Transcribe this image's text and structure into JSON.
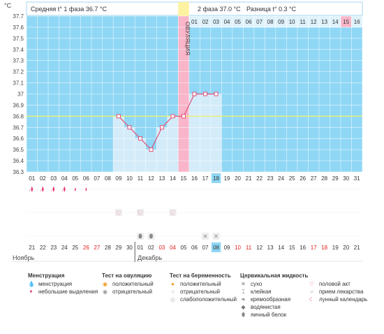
{
  "header": {
    "phase1": "Средняя t° 1 фаза 36.7 °C",
    "phase2": "2 фаза 37.0 °C",
    "diff": "Разница t° 0.3 °C"
  },
  "ovulation_label": "ОВУЛЯЦИЯ",
  "months": {
    "left": "Ноябрь",
    "right": "Декабрь"
  },
  "chart_data": {
    "type": "line",
    "title": "",
    "ylabel": "°C",
    "ylim": [
      36.3,
      37.7
    ],
    "yticks": [
      "36.3",
      "36.4",
      "36.5",
      "36.6",
      "36.7",
      "36.8",
      "36.9",
      "37",
      "37.1",
      "37.2",
      "37.3",
      "37.4",
      "37.5",
      "37.6",
      "37.7"
    ],
    "cycle_days": [
      "01",
      "02",
      "03",
      "04",
      "05",
      "06",
      "07",
      "08",
      "09",
      "10",
      "11",
      "12",
      "13",
      "14",
      "15",
      "16",
      "17",
      "18",
      "19",
      "20",
      "21",
      "22",
      "23",
      "24",
      "25",
      "26",
      "27",
      "28",
      "29",
      "30",
      "31"
    ],
    "top_days": [
      "01",
      "02",
      "03",
      "04",
      "05",
      "06",
      "07",
      "08",
      "09",
      "10",
      "11",
      "12",
      "13",
      "14",
      "15",
      "16"
    ],
    "dates": [
      "21",
      "22",
      "23",
      "24",
      "25",
      "26",
      "27",
      "28",
      "29",
      "30",
      "01",
      "02",
      "03",
      "04",
      "05",
      "06",
      "07",
      "08",
      "09",
      "10",
      "11",
      "12",
      "13",
      "14",
      "15",
      "16",
      "17",
      "18",
      "19",
      "20",
      "21"
    ],
    "weekend_date_indices": [
      5,
      6,
      12,
      13,
      19,
      20,
      26,
      27
    ],
    "highlighted_cycle_day": 18,
    "highlighted_top_day": 15,
    "ovulation_day": 15,
    "coverline": 36.8,
    "series": [
      {
        "x": [
          9,
          10,
          11,
          12,
          13,
          14,
          15,
          16,
          17,
          18
        ],
        "values": [
          36.8,
          36.7,
          36.6,
          36.5,
          36.7,
          36.8,
          36.8,
          37.0,
          37.0,
          37.0
        ]
      }
    ],
    "menstruation_days": [
      1,
      2,
      3,
      4,
      5,
      6
    ],
    "menstruation_light_days": [
      5,
      6
    ],
    "sex_days": [
      9,
      11,
      14
    ],
    "egg_white_days": [
      11,
      12
    ],
    "dry_days": [
      17,
      18
    ]
  },
  "legend": {
    "menstruation": {
      "title": "Менструация",
      "items": [
        "менструация",
        "небольшие выделения"
      ]
    },
    "ovulation_test": {
      "title": "Тест на овуляцию",
      "items": [
        "положительный",
        "отрицательный"
      ]
    },
    "pregnancy_test": {
      "title": "Тест на беременность",
      "items": [
        "положительный",
        "отрицательный",
        "слабоположительный"
      ]
    },
    "cervical": {
      "title": "Цервикальная жидкость",
      "items": [
        "сухо",
        "клейкая",
        "кремообразная",
        "водянистая",
        "яичный белок"
      ]
    },
    "other": {
      "items": [
        "половой акт",
        "прием лекарства",
        "лунный календарь"
      ]
    }
  },
  "colors": {
    "plot_bg": "#8fd7f5",
    "grid": "#ffffff",
    "ovulation": "#fdf2a0",
    "highlight": "#f9b5c9",
    "line": "#e0507a",
    "bar": "#d4ecfa",
    "weekend": "#e0201f"
  }
}
